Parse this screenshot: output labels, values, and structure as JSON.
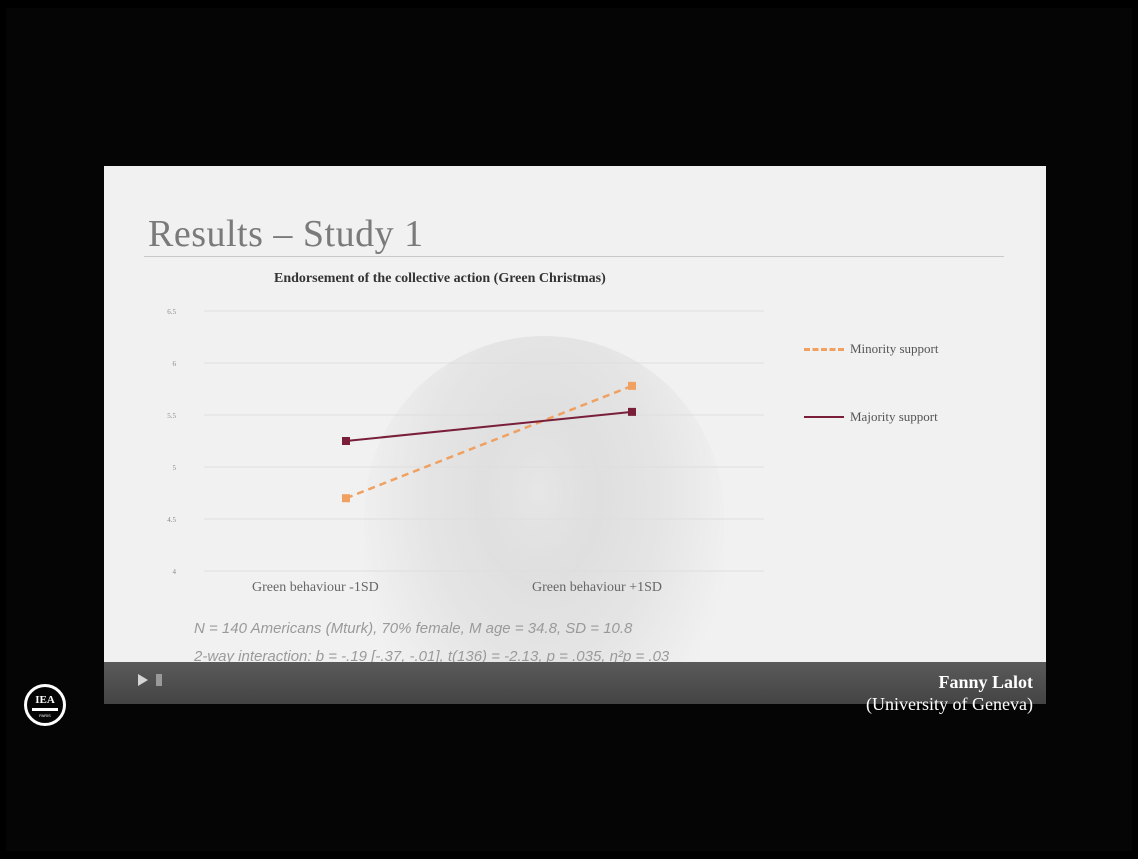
{
  "slide": {
    "title": "Results – Study 1",
    "footnote_1": "N = 140 Americans (Mturk), 70% female, M age = 34.8, SD = 10.8",
    "footnote_2": "2-way interaction: b = -.19 [-.37, -.01], t(136) = -2.13, p = .035, η²p = .03"
  },
  "chart_data": {
    "type": "line",
    "title": "Endorsement of the collective action (Green Christmas)",
    "categories": [
      "Green behaviour -1SD",
      "Green behaviour +1SD"
    ],
    "ylim": [
      4,
      6.5
    ],
    "yticks": [
      "6.5",
      "6",
      "5.5",
      "5",
      "4.5",
      "4"
    ],
    "grid": true,
    "legend_position": "right",
    "series": [
      {
        "name": "Minority support",
        "values": [
          4.7,
          5.78
        ],
        "color": "#f0a060",
        "style": "dashed"
      },
      {
        "name": "Majority support",
        "values": [
          5.25,
          5.53
        ],
        "color": "#7a1f3a",
        "style": "solid"
      }
    ]
  },
  "player": {
    "speaker_name": "Fanny Lalot",
    "speaker_affiliation": "(University of Geneva)",
    "logo_text": "IEA",
    "logo_subtext": "PARIS"
  },
  "colors": {
    "slide_bg": "#f1f1f1",
    "control_bar": "#4a4a4a",
    "minority": "#f0a060",
    "majority": "#7a1f3a"
  }
}
